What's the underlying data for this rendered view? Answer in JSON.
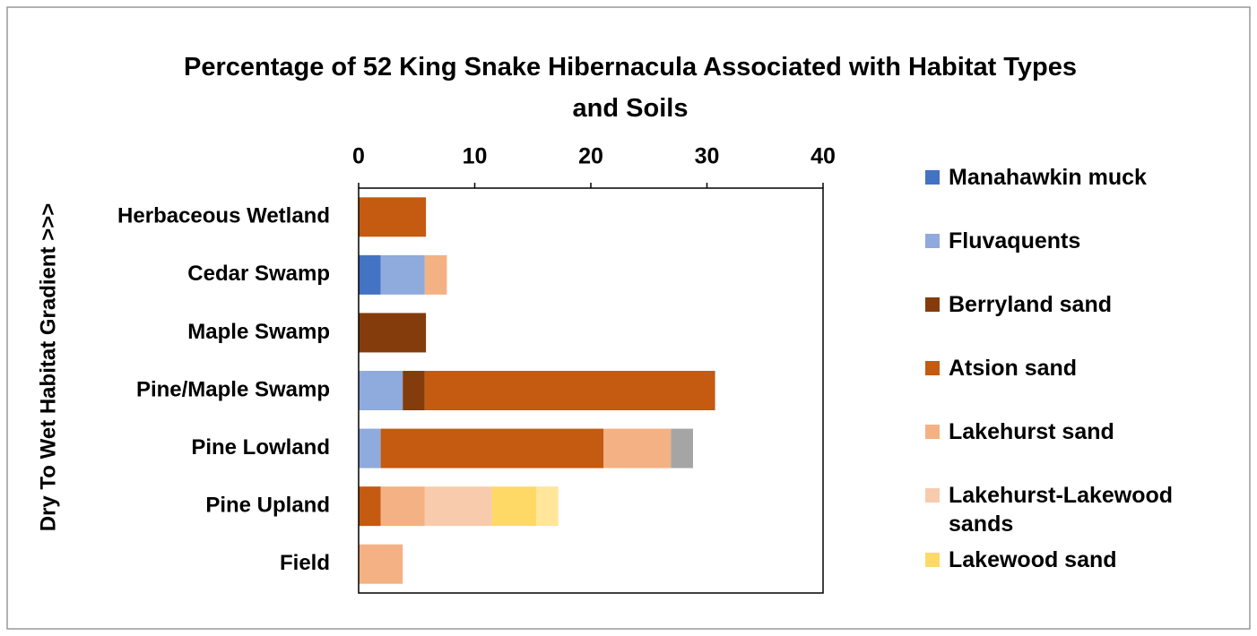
{
  "chart_data": {
    "type": "stacked-bar-horizontal",
    "title": "Percentage of 52 King Snake Hibernacula Associated with Habitat Types and Soils",
    "y_axis_label": "Dry To Wet Habitat Gradient >>>",
    "categories": [
      "Herbaceous Wetland",
      "Cedar Swamp",
      "Maple Swamp",
      "Pine/Maple Swamp",
      "Pine Lowland",
      "Pine Upland",
      "Field"
    ],
    "series": [
      {
        "name": "Manahawkin muck",
        "color": "#4472c4",
        "values": [
          null,
          1.9,
          null,
          null,
          null,
          null,
          null
        ]
      },
      {
        "name": "Fluvaquents",
        "color": "#8faadc",
        "values": [
          null,
          3.8,
          null,
          3.8,
          1.9,
          null,
          null
        ]
      },
      {
        "name": "Berryland sand",
        "color": "#843c0c",
        "values": [
          null,
          null,
          5.8,
          1.9,
          null,
          null,
          null
        ]
      },
      {
        "name": "Atsion sand",
        "color": "#c55a11",
        "values": [
          5.8,
          null,
          null,
          25,
          19.2,
          1.9,
          null
        ]
      },
      {
        "name": "Lakehurst sand",
        "color": "#f4b183",
        "values": [
          null,
          1.9,
          null,
          null,
          5.8,
          3.8,
          3.8
        ]
      },
      {
        "name": "Lakehurst-Lakewood sands",
        "color": "#f8cbad",
        "values": [
          null,
          null,
          null,
          null,
          null,
          5.8,
          null
        ]
      },
      {
        "name": "Lakewood sand",
        "color": "#ffd966",
        "values": [
          null,
          null,
          null,
          null,
          null,
          3.8,
          null
        ]
      },
      {
        "name": null,
        "color": "#a5a5a5",
        "values": [
          null,
          null,
          null,
          null,
          1.9,
          null,
          null
        ]
      },
      {
        "name": null,
        "color": "#ffe699",
        "values": [
          null,
          null,
          null,
          null,
          null,
          1.9,
          null
        ]
      }
    ],
    "xlim": [
      0,
      40
    ],
    "xticks": [
      0,
      10,
      20,
      30,
      40
    ],
    "legend": "right"
  }
}
